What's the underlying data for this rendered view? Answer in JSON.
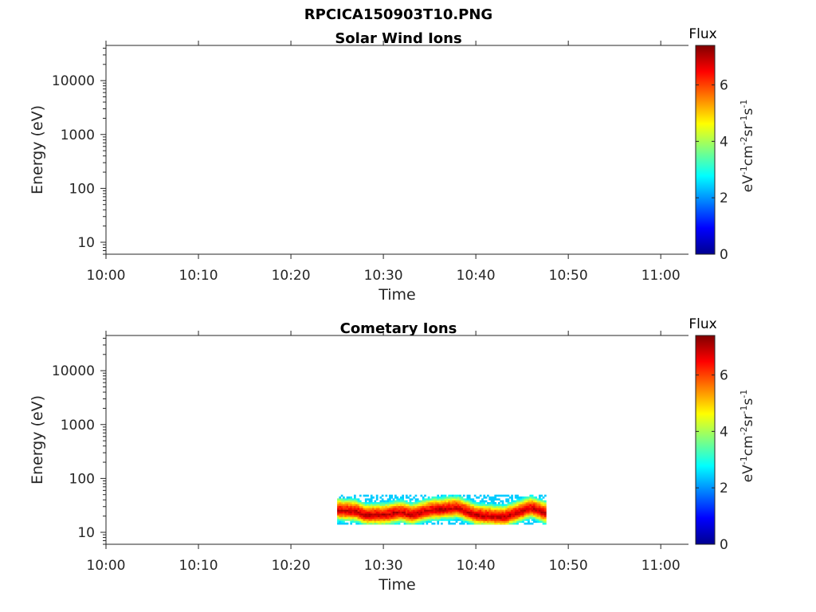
{
  "figure": {
    "title": "RPCICA150903T10.PNG"
  },
  "chart_data": [
    {
      "type": "heatmap",
      "title": "Solar Wind Ions",
      "xlabel": "Time",
      "ylabel": "Energy (eV)",
      "xlim": [
        "10:00",
        "11:03"
      ],
      "xticks": [
        "10:00",
        "10:10",
        "10:20",
        "10:30",
        "10:40",
        "10:50",
        "11:00"
      ],
      "yscale": "log",
      "ylim": [
        6,
        45000
      ],
      "yticks": [
        "10",
        "100",
        "1000",
        "10000"
      ],
      "colorbar": {
        "label": "Flux",
        "unit": "eV-1cm-2sr-1s-1",
        "range": [
          0,
          7.4
        ],
        "ticks": [
          "0",
          "2",
          "4",
          "6"
        ],
        "colormap": "jet"
      },
      "data": []
    },
    {
      "type": "heatmap",
      "title": "Cometary Ions",
      "xlabel": "Time",
      "ylabel": "Energy (eV)",
      "xlim": [
        "10:00",
        "11:03"
      ],
      "xticks": [
        "10:00",
        "10:10",
        "10:20",
        "10:30",
        "10:40",
        "10:50",
        "11:00"
      ],
      "yscale": "log",
      "ylim": [
        6,
        45000
      ],
      "yticks": [
        "10",
        "100",
        "1000",
        "10000"
      ],
      "colorbar": {
        "label": "Flux",
        "unit": "eV-1cm-2sr-1s-1",
        "range": [
          0,
          7.4
        ],
        "ticks": [
          "0",
          "2",
          "4",
          "6"
        ],
        "colormap": "jet"
      },
      "data": {
        "time_range": [
          "10:25",
          "10:47:30"
        ],
        "energy_range_eV": [
          14,
          50
        ],
        "peak_energy_eV": [
          [
            "10:25",
            27
          ],
          [
            "10:27",
            26
          ],
          [
            "10:28",
            22
          ],
          [
            "10:30",
            22
          ],
          [
            "10:32",
            25
          ],
          [
            "10:33",
            22
          ],
          [
            "10:35",
            27
          ],
          [
            "10:38",
            30
          ],
          [
            "10:40",
            22
          ],
          [
            "10:43",
            20
          ],
          [
            "10:45",
            26
          ],
          [
            "10:46",
            30
          ],
          [
            "10:47:30",
            24
          ]
        ],
        "peak_flux": 7.0
      }
    }
  ]
}
